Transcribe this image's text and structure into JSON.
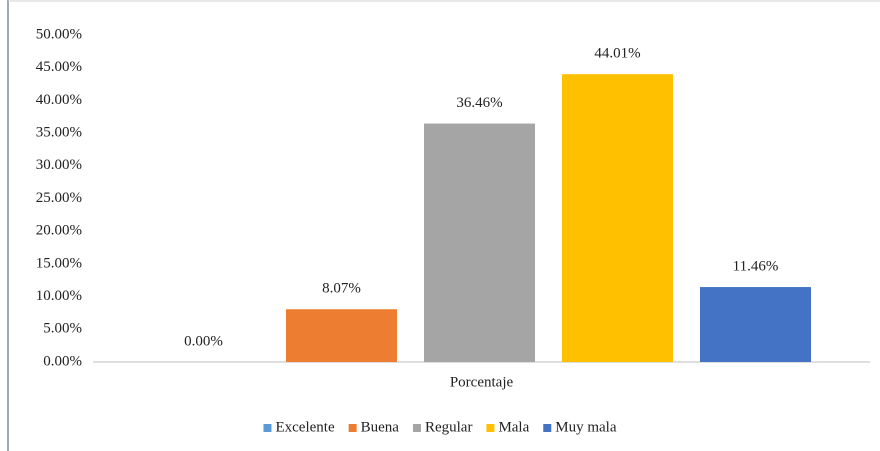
{
  "chart_data": {
    "type": "bar",
    "categories": [
      "Porcentaje"
    ],
    "series": [
      {
        "name": "Excelente",
        "color": "#5b9bd5",
        "values": [
          0
        ],
        "value_labels": [
          "0.00%"
        ]
      },
      {
        "name": "Buena",
        "color": "#ed7d31",
        "values": [
          8.07
        ],
        "value_labels": [
          "8.07%"
        ]
      },
      {
        "name": "Regular",
        "color": "#a5a5a5",
        "values": [
          36.46
        ],
        "value_labels": [
          "36.46%"
        ]
      },
      {
        "name": "Mala",
        "color": "#ffc000",
        "values": [
          44.01
        ],
        "value_labels": [
          "44.01%"
        ]
      },
      {
        "name": "Muy mala",
        "color": "#4472c4",
        "values": [
          11.46
        ],
        "value_labels": [
          "11.46%"
        ]
      }
    ],
    "ylim": [
      0,
      50
    ],
    "yticks": [
      {
        "value": 0,
        "label": "0.00%"
      },
      {
        "value": 5,
        "label": "5.00%"
      },
      {
        "value": 10,
        "label": "10.00%"
      },
      {
        "value": 15,
        "label": "15.00%"
      },
      {
        "value": 20,
        "label": "20.00%"
      },
      {
        "value": 25,
        "label": "25.00%"
      },
      {
        "value": 30,
        "label": "30.00%"
      },
      {
        "value": 35,
        "label": "35.00%"
      },
      {
        "value": 40,
        "label": "40.00%"
      },
      {
        "value": 45,
        "label": "45.00%"
      },
      {
        "value": 50,
        "label": "50.00%"
      }
    ],
    "grid": false,
    "legend": "bottom"
  }
}
